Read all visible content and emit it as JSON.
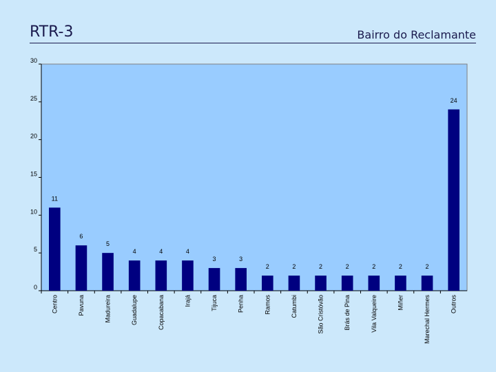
{
  "header": {
    "title": "RTR-3",
    "subtitle": "Bairro do Reclamante"
  },
  "colors": {
    "background": "#cce8fb",
    "plot_area": "#99ccff",
    "bar": "#000080"
  },
  "chart_data": {
    "type": "bar",
    "title": "",
    "xlabel": "",
    "ylabel": "",
    "ylim": [
      0,
      30
    ],
    "yticks": [
      0,
      5,
      10,
      15,
      20,
      25,
      30
    ],
    "grid": false,
    "categories": [
      "Centro",
      "Pavuna",
      "Madureira",
      "Guadalupe",
      "Copacabana",
      "Irajá",
      "Tijuca",
      "Penha",
      "Ramos",
      "Catumbi",
      "São Cristóvão",
      "Brás de Pina",
      "Vila Valqueire",
      "Miñer",
      "Marechal Hermes",
      "Outros"
    ],
    "values": [
      11,
      6,
      5,
      4,
      4,
      4,
      3,
      3,
      2,
      2,
      2,
      2,
      2,
      2,
      2,
      24
    ]
  }
}
